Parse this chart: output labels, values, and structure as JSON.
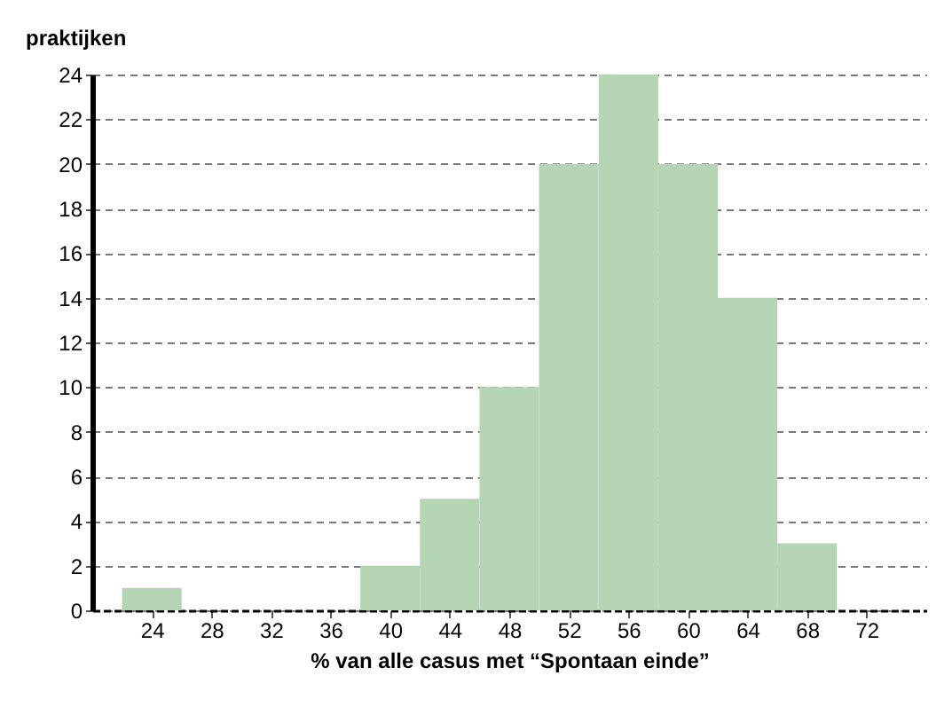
{
  "chart_data": {
    "type": "histogram",
    "ylabel": "praktijken",
    "xlabel": "% van alle casus met “Spontaan einde”",
    "bins": [
      22,
      26,
      30,
      34,
      38,
      42,
      46,
      50,
      54,
      58,
      62,
      66,
      70
    ],
    "values": [
      1,
      0,
      0,
      0,
      2,
      5,
      10,
      20,
      24,
      20,
      14,
      3
    ],
    "color": "#b5d5b5",
    "xlim": [
      20,
      76
    ],
    "xticks": [
      24,
      28,
      32,
      36,
      40,
      44,
      48,
      52,
      56,
      60,
      64,
      68,
      72
    ],
    "ylim": [
      0,
      24
    ],
    "yticks": [
      0,
      2,
      4,
      6,
      8,
      10,
      12,
      14,
      16,
      18,
      20,
      22,
      24
    ],
    "grid": "y"
  }
}
